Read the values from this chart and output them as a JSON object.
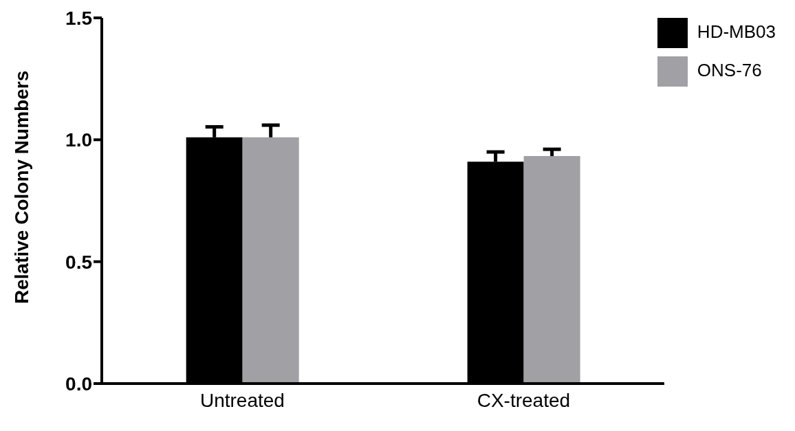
{
  "chart_data": {
    "type": "bar",
    "ylabel": "Relative Colony Numbers",
    "categories": [
      "Untreated",
      "CX-treated"
    ],
    "series": [
      {
        "name": "HD-MB03",
        "color": "#000000",
        "values": [
          1.01,
          0.91
        ],
        "errors": [
          [
            1.01,
            1.053
          ],
          [
            0.91,
            0.95
          ]
        ]
      },
      {
        "name": "ONS-76",
        "color": "#a1a0a5",
        "values": [
          1.01,
          0.933
        ],
        "errors": [
          [
            1.01,
            1.06
          ],
          [
            0.933,
            0.961
          ]
        ]
      }
    ],
    "ylim": [
      0,
      1.5
    ],
    "yticks": [
      {
        "value": 0,
        "label": "0.0"
      },
      {
        "value": 0.5,
        "label": "0.5"
      },
      {
        "value": 1,
        "label": "1.0"
      },
      {
        "value": 1.5,
        "label": "1.5"
      }
    ],
    "grid": false,
    "legend": "top right"
  }
}
